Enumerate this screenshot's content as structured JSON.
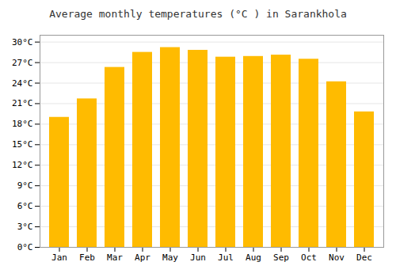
{
  "chart_data": {
    "type": "bar",
    "title": "Average monthly temperatures (°C ) in Sarankhola",
    "categories": [
      "Jan",
      "Feb",
      "Mar",
      "Apr",
      "May",
      "Jun",
      "Jul",
      "Aug",
      "Sep",
      "Oct",
      "Nov",
      "Dec"
    ],
    "values": [
      19.0,
      21.7,
      26.3,
      28.5,
      29.2,
      28.8,
      27.8,
      27.9,
      28.1,
      27.5,
      24.2,
      19.8
    ],
    "color": "#FFBB00",
    "ylim": [
      0,
      31
    ],
    "yticks": [
      {
        "value": 0,
        "label": "0°C"
      },
      {
        "value": 3,
        "label": "3°C"
      },
      {
        "value": 6,
        "label": "6°C"
      },
      {
        "value": 9,
        "label": "9°C"
      },
      {
        "value": 12,
        "label": "12°C"
      },
      {
        "value": 15,
        "label": "15°C"
      },
      {
        "value": 18,
        "label": "18°C"
      },
      {
        "value": 21,
        "label": "21°C"
      },
      {
        "value": 24,
        "label": "24°C"
      },
      {
        "value": 27,
        "label": "27°C"
      },
      {
        "value": 30,
        "label": "30°C"
      }
    ],
    "grid": true
  }
}
